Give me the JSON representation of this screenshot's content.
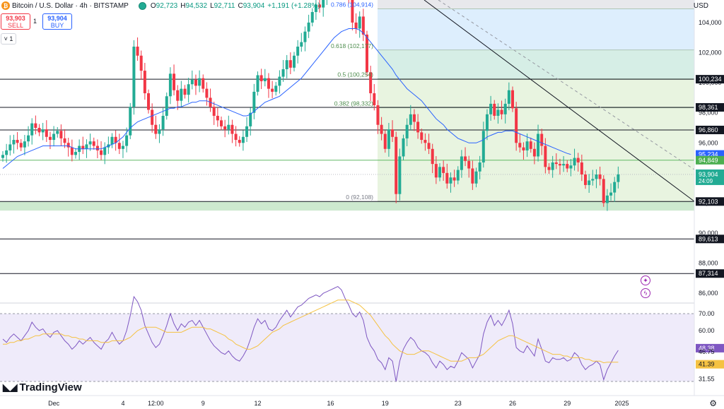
{
  "header": {
    "symbol": "Bitcoin / U.S. Dollar · 4h · BITSTAMP",
    "open_label": "O",
    "open": "92,723",
    "high_label": "H",
    "high": "94,532",
    "low_label": "L",
    "low": "92,711",
    "close_label": "C",
    "close": "93,904",
    "change": "+1,191 (+1.28%)"
  },
  "trade": {
    "sell_price": "93,903",
    "sell_label": "SELL",
    "spread": "1",
    "buy_price": "93,904",
    "buy_label": "BUY",
    "collapse_label": "˅ 1"
  },
  "currency": "USD",
  "brand": "TradingView",
  "colors": {
    "up": "#22ab94",
    "down": "#f23645",
    "ma": "#2962ff",
    "rsi": "#7e57c2",
    "rsi_ma": "#f5c242",
    "tag_dark": "#131722",
    "tag_green": "#4caf50",
    "tag_blue": "#2962ff",
    "tag_purple": "#7e57c2"
  },
  "icons": [
    "bitcoin-icon",
    "market-status-icon",
    "chevron-down-icon",
    "tradingview-logo-icon",
    "gear-icon",
    "crosshair-star-icon",
    "lightning-icon"
  ],
  "chart_data": [
    {
      "type": "candlestick",
      "title": "Bitcoin / U.S. Dollar · 4h · BITSTAMP",
      "ylim": [
        85400,
        105500
      ],
      "y_ticks": [
        "104,000",
        "102,000",
        "100,000",
        "98,000",
        "96,000",
        "94,000",
        "92,000",
        "90,000",
        "88,000",
        "86,000"
      ],
      "x_ticks": [
        {
          "label": "Dec",
          "index": 14
        },
        {
          "label": "4",
          "index": 33
        },
        {
          "label": "12:00",
          "index": 42
        },
        {
          "label": "9",
          "index": 55
        },
        {
          "label": "12",
          "index": 70
        },
        {
          "label": "16",
          "index": 90
        },
        {
          "label": "19",
          "index": 105
        },
        {
          "label": "23",
          "index": 125
        },
        {
          "label": "26",
          "index": 140
        },
        {
          "label": "29",
          "index": 155
        },
        {
          "label": "2025",
          "index": 170
        }
      ],
      "horizontal_levels": [
        {
          "label": "100,234",
          "value": 100234
        },
        {
          "label": "98,361",
          "value": 98361
        },
        {
          "label": "96,860",
          "value": 96860
        },
        {
          "label": "92,103",
          "value": 92103
        },
        {
          "label": "89,613",
          "value": 89613
        },
        {
          "label": "87,314",
          "value": 87314
        }
      ],
      "fibonacci": [
        {
          "label": "0.786 (104,914)",
          "value": 104914
        },
        {
          "label": "0.618 (102,177)",
          "value": 102177
        },
        {
          "label": "0.5 (100,254)",
          "value": 100254
        },
        {
          "label": "0.382 (98,332)",
          "value": 98332
        },
        {
          "label": "0 (92,108)",
          "value": 92108
        }
      ],
      "price_tags": [
        {
          "label": "95,234",
          "value": 95234,
          "kind": "ma"
        },
        {
          "label": "94,849",
          "value": 94849,
          "kind": "fib"
        },
        {
          "label": "93,904",
          "value": 93904,
          "kind": "price",
          "sub": "24:09"
        }
      ],
      "closes": [
        95200,
        95500,
        95900,
        96200,
        96000,
        95700,
        96100,
        96500,
        97300,
        97000,
        96700,
        96900,
        96400,
        96200,
        96600,
        96800,
        96300,
        96000,
        95700,
        95200,
        95400,
        95800,
        95600,
        95900,
        96100,
        95800,
        95500,
        95200,
        95700,
        95900,
        96400,
        96000,
        95600,
        95800,
        96500,
        98400,
        102400,
        101800,
        100800,
        99300,
        98200,
        97200,
        96600,
        96900,
        97800,
        99100,
        100600,
        99500,
        98800,
        99600,
        99200,
        99900,
        100200,
        99800,
        100300,
        99600,
        99000,
        98400,
        97800,
        97500,
        97100,
        96900,
        97200,
        96600,
        96200,
        96000,
        96400,
        97100,
        98000,
        99400,
        100500,
        100100,
        100300,
        99600,
        99400,
        99800,
        100400,
        100900,
        101500,
        101000,
        101800,
        102400,
        102700,
        103400,
        104000,
        104700,
        105200,
        105000,
        105600,
        106000,
        106600,
        107300,
        108000,
        107600,
        106500,
        105500,
        104000,
        103600,
        104400,
        103200,
        100700,
        99300,
        98500,
        97200,
        96600,
        95600,
        96900,
        96400,
        92600,
        95100,
        96300,
        97200,
        97900,
        97400,
        96700,
        96200,
        96000,
        95600,
        94600,
        93700,
        94400,
        94000,
        93300,
        93700,
        93500,
        94200,
        95100,
        94800,
        94300,
        93300,
        94100,
        94700,
        96800,
        97900,
        98600,
        97800,
        98200,
        97900,
        98600,
        99500,
        98300,
        96000,
        95700,
        95500,
        96100,
        95600,
        95100,
        96600,
        95800,
        94400,
        94200,
        94700,
        94600,
        94500,
        94600,
        94300,
        94500,
        95000,
        94700,
        93900,
        93200,
        93500,
        93600,
        93900,
        93600,
        92000,
        92500,
        92700,
        93400,
        93904
      ],
      "ma_values": [
        94300,
        94500,
        94700,
        94900,
        95100,
        95200,
        95300,
        95400,
        95500,
        95600,
        95700,
        95800,
        95800,
        95800,
        95800,
        95800,
        95800,
        95800,
        95800,
        95700,
        95600,
        95600,
        95600,
        95600,
        95600,
        95600,
        95600,
        95600,
        95700,
        95800,
        95900,
        96000,
        96200,
        96400,
        96700,
        97000,
        97200,
        97400,
        97500,
        97600,
        97700,
        97800,
        97900,
        98000,
        98100,
        98200,
        98300,
        98300,
        98400,
        98400,
        98500,
        98600,
        98700,
        98700,
        98800,
        98800,
        98800,
        98700,
        98600,
        98500,
        98400,
        98300,
        98200,
        98100,
        98000,
        97900,
        97800,
        97800,
        97900,
        98100,
        98300,
        98500,
        98700,
        98800,
        98900,
        99000,
        99100,
        99300,
        99500,
        99700,
        99900,
        100100,
        100300,
        100600,
        100900,
        101200,
        101500,
        101800,
        102100,
        102400,
        102700,
        103000,
        103200,
        103400,
        103500,
        103600,
        103600,
        103600,
        103500,
        103300,
        103000,
        102700,
        102400,
        102100,
        101800,
        101500,
        101200,
        100900,
        100500,
        100200,
        99900,
        99600,
        99400,
        99200,
        99000,
        98800,
        98500,
        98200,
        97900,
        97600,
        97400,
        97200,
        96900,
        96700,
        96500,
        96300,
        96200,
        96100,
        96000,
        96000,
        96000,
        96100,
        96200,
        96400,
        96500,
        96600,
        96700,
        96700,
        96800,
        96800,
        96800,
        96700,
        96600,
        96500,
        96400,
        96300,
        96200,
        96100,
        96000,
        95900,
        95800,
        95700,
        95600,
        95500,
        95400,
        95300,
        95234
      ],
      "rsi": {
        "levels": [
          70,
          30
        ],
        "y_ticks": [
          "70.00",
          "60.00"
        ],
        "tags": [
          {
            "label": "48.38",
            "value": 48.38,
            "kind": "rsi"
          },
          {
            "label": "46.75",
            "value": 46.75,
            "kind": "plain"
          },
          {
            "label": "41.39",
            "value": 41.39,
            "kind": "rsima"
          },
          {
            "label": "31.55",
            "value": 31.55,
            "kind": "plain"
          }
        ],
        "values": [
          55,
          53,
          56,
          58,
          56,
          54,
          57,
          60,
          65,
          62,
          60,
          61,
          58,
          56,
          59,
          60,
          57,
          54,
          52,
          49,
          51,
          54,
          52,
          54,
          56,
          53,
          51,
          49,
          53,
          55,
          59,
          55,
          52,
          54,
          60,
          69,
          80,
          77,
          72,
          63,
          58,
          53,
          50,
          52,
          57,
          63,
          70,
          64,
          60,
          64,
          62,
          65,
          66,
          63,
          66,
          62,
          58,
          54,
          51,
          49,
          47,
          46,
          48,
          45,
          43,
          42,
          45,
          49,
          55,
          62,
          67,
          64,
          66,
          61,
          60,
          62,
          66,
          69,
          72,
          68,
          71,
          74,
          75,
          77,
          79,
          80,
          81,
          80,
          82,
          83,
          84,
          85,
          86,
          84,
          79,
          75,
          70,
          68,
          71,
          66,
          56,
          51,
          48,
          43,
          41,
          37,
          44,
          42,
          30,
          42,
          49,
          53,
          56,
          54,
          50,
          48,
          47,
          45,
          41,
          38,
          42,
          40,
          37,
          39,
          38,
          42,
          47,
          45,
          43,
          38,
          42,
          46,
          58,
          65,
          69,
          63,
          66,
          63,
          67,
          72,
          64,
          50,
          48,
          47,
          51,
          48,
          45,
          55,
          49,
          42,
          41,
          44,
          43,
          43,
          44,
          42,
          43,
          47,
          45,
          40,
          37,
          39,
          40,
          42,
          40,
          31,
          37,
          41,
          45,
          48.38
        ],
        "ma_values": [
          52,
          52,
          53,
          53,
          54,
          54,
          55,
          55,
          56,
          57,
          57,
          58,
          58,
          58,
          58,
          58,
          58,
          57,
          57,
          56,
          56,
          55,
          55,
          54,
          54,
          54,
          54,
          53,
          53,
          53,
          54,
          54,
          54,
          54,
          55,
          56,
          58,
          60,
          61,
          62,
          62,
          62,
          62,
          61,
          60,
          59,
          59,
          59,
          59,
          59,
          60,
          61,
          62,
          62,
          62,
          62,
          61,
          61,
          60,
          59,
          58,
          57,
          55,
          54,
          52,
          51,
          50,
          49,
          49,
          50,
          51,
          53,
          55,
          57,
          59,
          60,
          61,
          63,
          64,
          65,
          66,
          67,
          68,
          69,
          70,
          71,
          72,
          73,
          74,
          75,
          76,
          77,
          78,
          78,
          78,
          78,
          77,
          76,
          75,
          73,
          71,
          69,
          66,
          63,
          60,
          57,
          55,
          52,
          50,
          48,
          47,
          46,
          46,
          46,
          47,
          48,
          48,
          48,
          47,
          46,
          45,
          44,
          43,
          42,
          42,
          42,
          42,
          43,
          44,
          44,
          44,
          45,
          46,
          48,
          50,
          52,
          54,
          55,
          56,
          57,
          57,
          56,
          55,
          54,
          53,
          52,
          51,
          50,
          49,
          48,
          47,
          46,
          46,
          46,
          45,
          45,
          44,
          44,
          44,
          44,
          43,
          43,
          42,
          42,
          42,
          41,
          41.39,
          41.39,
          41.39,
          41.39
        ]
      }
    }
  ]
}
